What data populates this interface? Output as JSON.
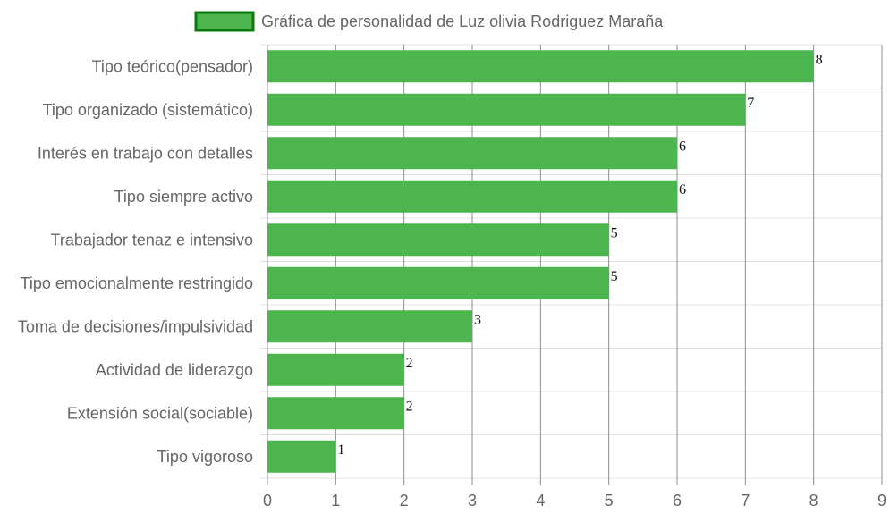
{
  "chart_data": {
    "type": "bar",
    "orientation": "horizontal",
    "legend": {
      "label": "Gráfica de personalidad de Luz olivia Rodriguez Maraña",
      "position": "top-center"
    },
    "categories": [
      "Tipo teórico(pensador)",
      "Tipo organizado (sistemático)",
      "Interés en trabajo con detalles",
      "Tipo siempre activo",
      "Trabajador tenaz e intensivo",
      "Tipo emocionalmente restringido",
      "Toma de decisiones/impulsividad",
      "Actividad de liderazgo",
      "Extensión social(sociable)",
      "Tipo vigoroso"
    ],
    "series": [
      {
        "name": "Gráfica de personalidad de Luz olivia Rodriguez Maraña",
        "values": [
          8,
          7,
          6,
          6,
          5,
          5,
          3,
          2,
          2,
          1
        ],
        "color": "#4db54d",
        "border_color": "#0d7a0d"
      }
    ],
    "xlim": [
      0,
      9
    ],
    "x_ticks": [
      0,
      1,
      2,
      3,
      4,
      5,
      6,
      7,
      8,
      9
    ],
    "show_value_labels": true,
    "grid": true,
    "colors": {
      "bar": "#4db54d",
      "legend_border": "#0d7a0d",
      "vertical_grid": "#8c8c8c",
      "horizontal_grid": "#e0e0e0",
      "text": "#666666",
      "value_text": "#111111"
    }
  }
}
